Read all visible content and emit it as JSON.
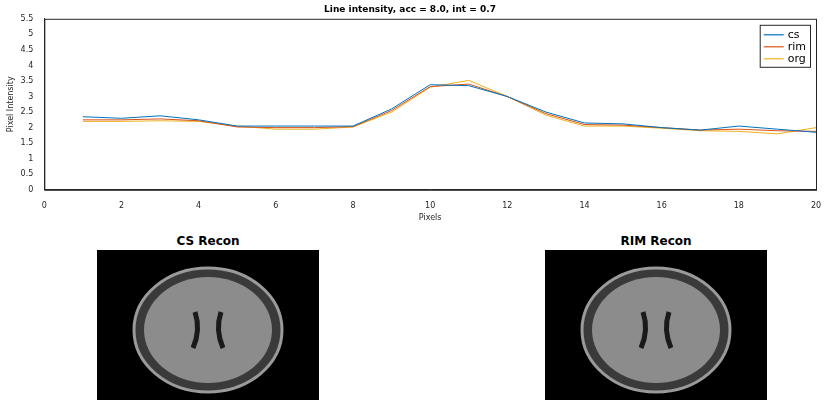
{
  "chart_data": {
    "type": "line",
    "title": "Line intensity, acc = 8.0, int = 0.7",
    "x_label": "Pixels",
    "y_label": "Pixel Intensity",
    "x": [
      1,
      2,
      3,
      4,
      5,
      6,
      7,
      8,
      9,
      10,
      11,
      12,
      13,
      14,
      15,
      16,
      17,
      18,
      19,
      20
    ],
    "series": [
      {
        "name": "cs",
        "color": "#0072bd",
        "values": [
          2.35,
          2.3,
          2.38,
          2.25,
          2.05,
          2.05,
          2.05,
          2.05,
          2.6,
          3.38,
          3.35,
          3.0,
          2.5,
          2.15,
          2.12,
          2.0,
          1.92,
          2.05,
          1.95,
          1.85
        ]
      },
      {
        "name": "rim",
        "color": "#d95319",
        "values": [
          2.25,
          2.25,
          2.28,
          2.22,
          2.02,
          2.0,
          2.0,
          2.03,
          2.55,
          3.32,
          3.4,
          3.0,
          2.45,
          2.1,
          2.08,
          2.0,
          1.92,
          1.95,
          1.9,
          1.88
        ]
      },
      {
        "name": "org",
        "color": "#edb120",
        "values": [
          2.2,
          2.2,
          2.22,
          2.2,
          2.05,
          1.95,
          1.95,
          2.02,
          2.5,
          3.3,
          3.52,
          3.0,
          2.4,
          2.05,
          2.05,
          1.98,
          1.9,
          1.88,
          1.8,
          2.0
        ]
      }
    ],
    "xlim": [
      0,
      20
    ],
    "xticks": [
      0,
      2,
      4,
      6,
      8,
      10,
      12,
      14,
      16,
      18,
      20
    ],
    "ylim": [
      0,
      5.5
    ],
    "yticks": [
      0,
      0.5,
      1,
      1.5,
      2,
      2.5,
      3,
      3.5,
      4,
      4.5,
      5,
      5.5
    ],
    "grid": false,
    "legend": "upper right",
    "panels": [
      {
        "title": "CS Recon"
      },
      {
        "title": "RIM Recon"
      }
    ]
  }
}
